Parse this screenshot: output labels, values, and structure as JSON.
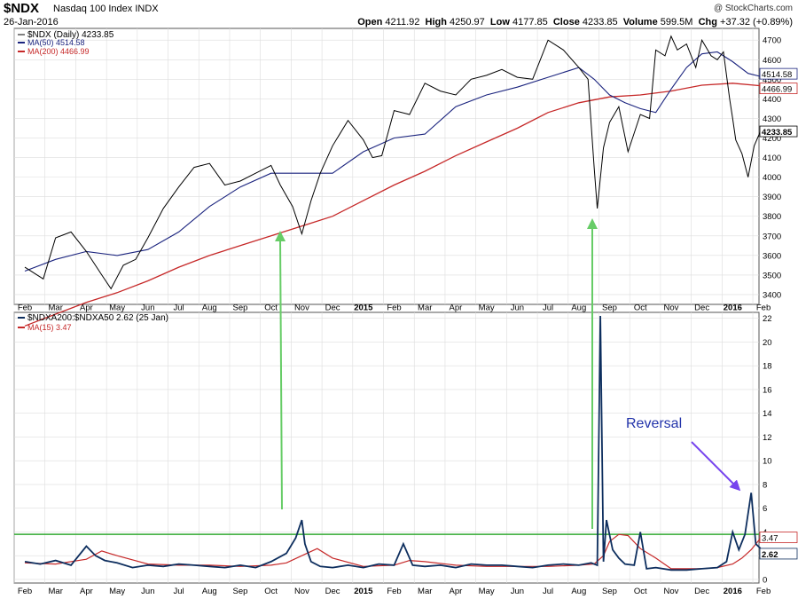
{
  "header": {
    "symbol": "$NDX",
    "index_name": "Nasdaq 100 Index  INDX",
    "date": "26-Jan-2016",
    "credit": "@ StockCharts.com",
    "open_label": "Open",
    "open": "4211.92",
    "high_label": "High",
    "high": "4250.97",
    "low_label": "Low",
    "low": "4177.85",
    "close_label": "Close",
    "close": "4233.85",
    "volume_label": "Volume",
    "volume": "599.5M",
    "chg_label": "Chg",
    "chg": "+37.32 (+0.89%)"
  },
  "top_legend": {
    "price": "$NDX (Daily) 4233.85",
    "ma50": "MA(50) 4514.58",
    "ma200": "MA(200) 4466.99"
  },
  "bottom_legend": {
    "ratio": "$NDXA200:$NDXA50 2.62 (25 Jan)",
    "ma15": "MA(15) 3.47"
  },
  "annotation": "Reversal",
  "month_labels": [
    "Feb",
    "Mar",
    "Apr",
    "May",
    "Jun",
    "Jul",
    "Aug",
    "Sep",
    "Oct",
    "Nov",
    "Dec",
    "2015",
    "Feb",
    "Mar",
    "Apr",
    "May",
    "Jun",
    "Jul",
    "Aug",
    "Sep",
    "Oct",
    "Nov",
    "Dec",
    "2016",
    "Feb"
  ],
  "colors": {
    "price": "#000000",
    "ma50": "#1a237e",
    "ma200": "#c62828",
    "ratio": "#0d2e5e",
    "ma15": "#c62828",
    "threshold": "#33aa33",
    "arrow_green": "#66cc66",
    "arrow_purple": "#7744ee",
    "grid": "#dddddd"
  },
  "chart_data": [
    {
      "type": "line",
      "series_kind": "ohlc-daily",
      "ylim": [
        3350,
        4760
      ],
      "y_ticks": [
        3400,
        3500,
        3600,
        3700,
        3800,
        3900,
        4000,
        4100,
        4200,
        4300,
        4400,
        4500,
        4600,
        4700
      ],
      "value_tags": {
        "ma50": "4514.58",
        "ma200": "4466.99",
        "close": "4233.85"
      },
      "series": [
        {
          "name": "$NDX (Daily)",
          "t": [
            0,
            0.6,
            1.0,
            1.5,
            2.0,
            2.5,
            2.8,
            3.2,
            3.6,
            4.0,
            4.5,
            5.0,
            5.5,
            6.0,
            6.5,
            7.0,
            7.5,
            8.0,
            8.3,
            8.7,
            9.0,
            9.3,
            9.6,
            10.0,
            10.5,
            11.0,
            11.3,
            11.6,
            12.0,
            12.5,
            13.0,
            13.5,
            14.0,
            14.5,
            15.0,
            15.5,
            16.0,
            16.5,
            17.0,
            17.5,
            18.0,
            18.3,
            18.5,
            18.6,
            18.8,
            19.0,
            19.3,
            19.6,
            20.0,
            20.3,
            20.5,
            20.8,
            21.0,
            21.2,
            21.5,
            21.8,
            22.0,
            22.3,
            22.5,
            22.7,
            22.9,
            23.0,
            23.1,
            23.3,
            23.5,
            23.7,
            23.9
          ],
          "values": [
            3540,
            3480,
            3690,
            3720,
            3620,
            3500,
            3430,
            3550,
            3580,
            3690,
            3840,
            3950,
            4050,
            4070,
            3960,
            3980,
            4020,
            4060,
            3960,
            3850,
            3710,
            3880,
            4020,
            4160,
            4290,
            4190,
            4100,
            4110,
            4340,
            4320,
            4480,
            4440,
            4420,
            4500,
            4520,
            4550,
            4510,
            4500,
            4700,
            4650,
            4560,
            4500,
            4050,
            3840,
            4150,
            4280,
            4360,
            4130,
            4320,
            4300,
            4650,
            4620,
            4720,
            4650,
            4680,
            4560,
            4700,
            4620,
            4600,
            4640,
            4400,
            4300,
            4190,
            4120,
            4000,
            4160,
            4233.85
          ]
        },
        {
          "name": "MA(50)",
          "t": [
            0,
            1,
            2,
            3,
            4,
            5,
            6,
            7,
            8,
            9,
            10,
            11,
            12,
            13,
            14,
            15,
            16,
            17,
            18,
            18.5,
            19,
            19.5,
            20,
            20.5,
            21,
            21.5,
            22,
            22.5,
            23,
            23.5,
            23.9
          ],
          "values": [
            3520,
            3580,
            3620,
            3600,
            3630,
            3720,
            3850,
            3950,
            4020,
            4020,
            4020,
            4130,
            4200,
            4220,
            4360,
            4420,
            4460,
            4510,
            4560,
            4500,
            4420,
            4380,
            4350,
            4330,
            4450,
            4560,
            4630,
            4640,
            4590,
            4530,
            4514.58
          ]
        },
        {
          "name": "MA(200)",
          "t": [
            0,
            1,
            2,
            3,
            4,
            5,
            6,
            7,
            8,
            9,
            10,
            11,
            12,
            13,
            14,
            15,
            16,
            17,
            18,
            19,
            20,
            21,
            22,
            23,
            23.9
          ],
          "values": [
            3240,
            3300,
            3360,
            3410,
            3470,
            3540,
            3600,
            3650,
            3700,
            3750,
            3800,
            3880,
            3960,
            4030,
            4110,
            4180,
            4250,
            4330,
            4380,
            4410,
            4420,
            4440,
            4470,
            4480,
            4466.99
          ]
        }
      ]
    },
    {
      "type": "line",
      "ylim": [
        -0.3,
        22.5
      ],
      "y_ticks": [
        0,
        2,
        4,
        6,
        8,
        10,
        12,
        14,
        16,
        18,
        20,
        22
      ],
      "threshold": 3.8,
      "value_tags": {
        "ma15": "3.47",
        "ratio": "2.62"
      },
      "series": [
        {
          "name": "$NDXA200:$NDXA50",
          "t": [
            0,
            0.5,
            1.0,
            1.5,
            2.0,
            2.3,
            2.6,
            3.0,
            3.5,
            4.0,
            4.5,
            5.0,
            5.5,
            6.0,
            6.5,
            7.0,
            7.5,
            8.0,
            8.5,
            8.8,
            9.0,
            9.1,
            9.3,
            9.6,
            10.0,
            10.5,
            11.0,
            11.5,
            12.0,
            12.3,
            12.6,
            13.0,
            13.5,
            14.0,
            14.5,
            15.0,
            15.5,
            16.0,
            16.5,
            17.0,
            17.5,
            18.0,
            18.4,
            18.6,
            18.7,
            18.8,
            18.9,
            19.1,
            19.3,
            19.5,
            19.8,
            20.0,
            20.2,
            20.5,
            21.0,
            21.5,
            22.0,
            22.5,
            22.8,
            23.0,
            23.2,
            23.4,
            23.6,
            23.75,
            23.9
          ],
          "values": [
            1.5,
            1.3,
            1.6,
            1.2,
            2.8,
            2.0,
            1.6,
            1.4,
            1.0,
            1.2,
            1.1,
            1.3,
            1.2,
            1.1,
            1.0,
            1.2,
            1.0,
            1.5,
            2.2,
            3.5,
            5.0,
            3.0,
            1.5,
            1.1,
            1.0,
            1.2,
            1.0,
            1.3,
            1.2,
            3.0,
            1.2,
            1.1,
            1.2,
            1.0,
            1.3,
            1.2,
            1.2,
            1.1,
            1.0,
            1.2,
            1.3,
            1.2,
            1.4,
            1.2,
            22.2,
            1.5,
            5.0,
            2.5,
            1.8,
            1.3,
            1.2,
            4.0,
            0.9,
            1.0,
            0.8,
            0.8,
            0.9,
            1.0,
            1.5,
            4.0,
            2.5,
            3.8,
            7.3,
            3.0,
            2.62
          ]
        },
        {
          "name": "MA(15)",
          "t": [
            0,
            1,
            2,
            2.5,
            3,
            4,
            5,
            6,
            7,
            8,
            8.5,
            9,
            9.5,
            10,
            11,
            12,
            12.5,
            13,
            14,
            15,
            16,
            17,
            18,
            18.5,
            18.8,
            19.0,
            19.3,
            19.6,
            20.0,
            20.5,
            21,
            22,
            22.5,
            23,
            23.3,
            23.6,
            23.9
          ],
          "values": [
            1.4,
            1.3,
            1.7,
            2.4,
            2.0,
            1.3,
            1.2,
            1.2,
            1.1,
            1.2,
            1.4,
            2.0,
            2.6,
            1.8,
            1.1,
            1.2,
            1.6,
            1.5,
            1.2,
            1.1,
            1.1,
            1.1,
            1.2,
            1.3,
            2.0,
            3.2,
            3.8,
            3.7,
            2.6,
            1.8,
            0.9,
            0.9,
            1.0,
            1.3,
            1.8,
            2.5,
            3.47
          ]
        }
      ]
    }
  ]
}
